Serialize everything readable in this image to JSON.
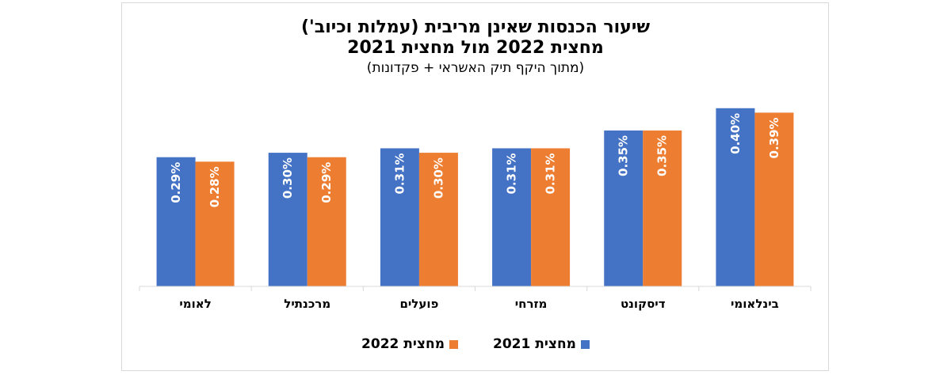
{
  "chart_data": {
    "type": "bar",
    "title": "שיעור הכנסות שאינן מריבית (עמלות וכיוב')",
    "subtitle": "מחצית 2022 מול מחצית 2021",
    "note": "(מתוך היקף תיק האשראי + פקדונות)",
    "categories": [
      "בינלאומי",
      "דיסקונט",
      "מזרחי",
      "פועלים",
      "מרכנתיל",
      "לאומי"
    ],
    "series": [
      {
        "name": "מחצית 2021",
        "color": "#4472C4",
        "values": [
          0.4,
          0.35,
          0.31,
          0.31,
          0.3,
          0.29
        ],
        "labels": [
          "0.40%",
          "0.35%",
          "0.31%",
          "0.31%",
          "0.30%",
          "0.29%"
        ]
      },
      {
        "name": "מחצית 2022",
        "color": "#ED7D31",
        "values": [
          0.39,
          0.35,
          0.31,
          0.3,
          0.29,
          0.28
        ],
        "labels": [
          "0.39%",
          "0.35%",
          "0.31%",
          "0.30%",
          "0.29%",
          "0.28%"
        ]
      }
    ],
    "ylim": [
      0,
      0.444
    ],
    "grid": false,
    "legend_position": "bottom"
  }
}
